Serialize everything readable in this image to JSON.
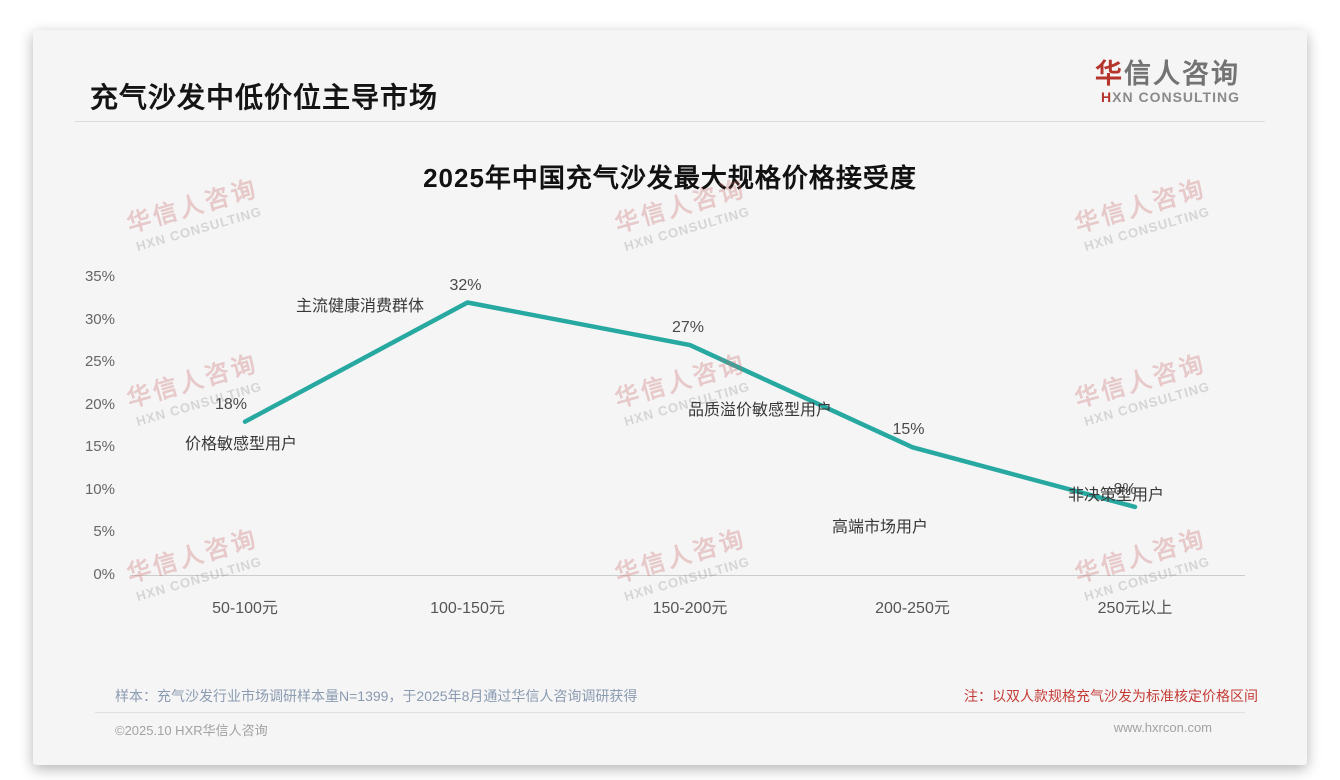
{
  "page": {
    "title": "充气沙发中低价位主导市场",
    "logo": {
      "cn_first": "华",
      "cn_rest": "信人咨询",
      "en_first": "H",
      "en_rest": "XN CONSULTING"
    },
    "sample_note": "样本：充气沙发行业市场调研样本量N=1399，于2025年8月通过华信人咨询调研获得",
    "price_note": "注：以双人款规格充气沙发为标准核定价格区间",
    "footer_left": "©2025.10 HXR华信人咨询",
    "footer_right": "www.hxrcon.com"
  },
  "watermark": {
    "text": "华信人咨询",
    "subtext": "HXN CONSULTING"
  },
  "chart_data": {
    "type": "line",
    "title": "2025年中国充气沙发最大规格价格接受度",
    "categories": [
      "50-100元",
      "100-150元",
      "150-200元",
      "200-250元",
      "250元以上"
    ],
    "values": [
      18,
      32,
      27,
      15,
      8
    ],
    "value_labels": [
      "18%",
      "32%",
      "27%",
      "15%",
      "8%"
    ],
    "annotations": [
      "价格敏感型用户",
      "主流健康消费群体",
      "品质溢价敏感型用户",
      "高端市场用户",
      "非决策型用户"
    ],
    "ytick_labels": [
      "35%",
      "30%",
      "25%",
      "20%",
      "15%",
      "10%",
      "5%",
      "0%"
    ],
    "ytick_values": [
      35,
      30,
      25,
      20,
      15,
      10,
      5,
      0
    ],
    "ylim": [
      0,
      35
    ],
    "xlabel": "",
    "ylabel": "",
    "grid": false,
    "legend": false,
    "line_color": "#27a9a1"
  }
}
